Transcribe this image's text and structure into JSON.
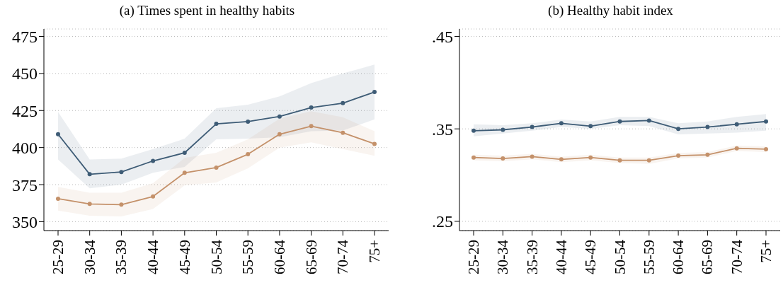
{
  "chart_data": [
    {
      "type": "line",
      "title": "(a) Times spent in healthy habits",
      "categories": [
        "25-29",
        "30-34",
        "35-39",
        "40-44",
        "45-49",
        "50-54",
        "55-59",
        "60-64",
        "65-69",
        "70-74",
        "75+"
      ],
      "ylim": [
        344,
        480
      ],
      "yticks": [
        350,
        375,
        400,
        425,
        450,
        475
      ],
      "grid": "y",
      "marker": "circle",
      "series": [
        {
          "color": "#3e5c76",
          "values": [
            409,
            382,
            383.5,
            391,
            396.5,
            416,
            417.5,
            421,
            427,
            430,
            437.5
          ],
          "lower": [
            392,
            372.5,
            375,
            383,
            387,
            405.5,
            406,
            407,
            411,
            411.5,
            419
          ],
          "upper": [
            424,
            392,
            392.5,
            399,
            406,
            426.5,
            429,
            434.5,
            443.5,
            450,
            456
          ]
        },
        {
          "color": "#c4916a",
          "values": [
            365.5,
            362,
            361.5,
            367,
            383,
            386.5,
            395.5,
            409,
            414.5,
            410,
            402.5
          ],
          "lower": [
            357.5,
            354,
            353.5,
            358.5,
            374.5,
            376.5,
            386,
            400,
            403.5,
            399,
            394.5
          ],
          "upper": [
            373.5,
            369.5,
            369.5,
            376,
            393,
            396.5,
            405.5,
            419.5,
            424.5,
            420.5,
            411
          ]
        }
      ]
    },
    {
      "type": "line",
      "title": "(b) Healthy habit index",
      "categories": [
        "25-29",
        "30-34",
        "35-39",
        "40-44",
        "45-49",
        "50-54",
        "55-59",
        "60-64",
        "65-69",
        "70-74",
        "75+"
      ],
      "ylim": [
        0.24,
        0.458
      ],
      "yticks": [
        {
          "value": 0.25,
          "label": ".25"
        },
        {
          "value": 0.35,
          "label": ".35"
        },
        {
          "value": 0.45,
          "label": ".45"
        }
      ],
      "grid": "y",
      "marker": "circle",
      "series": [
        {
          "color": "#3e5c76",
          "values": [
            0.348,
            0.349,
            0.352,
            0.356,
            0.353,
            0.358,
            0.359,
            0.35,
            0.352,
            0.355,
            0.358
          ],
          "lower": [
            0.342,
            0.345,
            0.348,
            0.352,
            0.35,
            0.354,
            0.353,
            0.344,
            0.345,
            0.346,
            0.348
          ],
          "upper": [
            0.355,
            0.354,
            0.356,
            0.36,
            0.358,
            0.363,
            0.363,
            0.356,
            0.358,
            0.363,
            0.366
          ]
        },
        {
          "color": "#c4916a",
          "values": [
            0.319,
            0.318,
            0.32,
            0.317,
            0.319,
            0.316,
            0.316,
            0.321,
            0.322,
            0.329,
            0.328
          ],
          "lower": [
            0.316,
            0.315,
            0.317,
            0.314,
            0.316,
            0.313,
            0.312,
            0.318,
            0.319,
            0.326,
            0.325
          ],
          "upper": [
            0.322,
            0.321,
            0.323,
            0.32,
            0.322,
            0.319,
            0.319,
            0.324,
            0.325,
            0.332,
            0.331
          ]
        }
      ]
    }
  ]
}
